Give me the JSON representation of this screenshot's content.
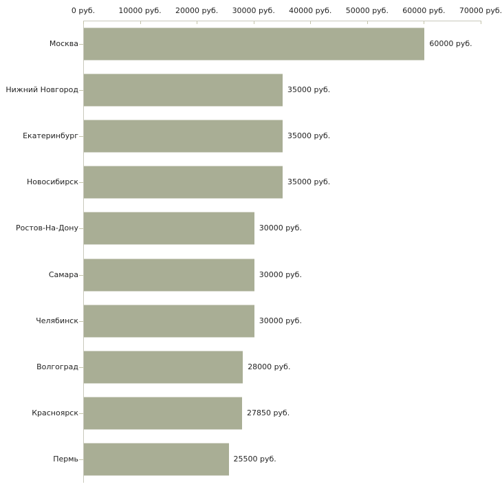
{
  "chart_data": {
    "type": "bar",
    "orientation": "horizontal",
    "title": "",
    "xlabel": "",
    "ylabel": "",
    "unit": "руб.",
    "categories": [
      "Москва",
      "Нижний Новгород",
      "Екатеринбург",
      "Новосибирск",
      "Ростов-На-Дону",
      "Самара",
      "Челябинск",
      "Волгоград",
      "Красноярск",
      "Пермь"
    ],
    "values": [
      60000,
      35000,
      35000,
      35000,
      30000,
      30000,
      30000,
      28000,
      27850,
      25500
    ],
    "value_labels": [
      "60000 руб.",
      "35000 руб.",
      "35000 руб.",
      "35000 руб.",
      "30000 руб.",
      "30000 руб.",
      "30000 руб.",
      "28000 руб.",
      "27850 руб.",
      "25500 руб."
    ],
    "x_ticks": [
      0,
      10000,
      20000,
      30000,
      40000,
      50000,
      60000,
      70000
    ],
    "x_tick_labels": [
      "0 руб.",
      "10000 руб.",
      "20000 руб.",
      "30000 руб.",
      "40000 руб.",
      "50000 руб.",
      "60000 руб.",
      "70000 руб."
    ],
    "xlim": [
      0,
      70000
    ],
    "grid": false,
    "legend": "none",
    "colors": {
      "bar_fill": "#a9ae95",
      "axis_line": "#c8c8bb",
      "tick_mark": "#c3c3a8",
      "text": "#222222",
      "background": "#ffffff"
    }
  }
}
